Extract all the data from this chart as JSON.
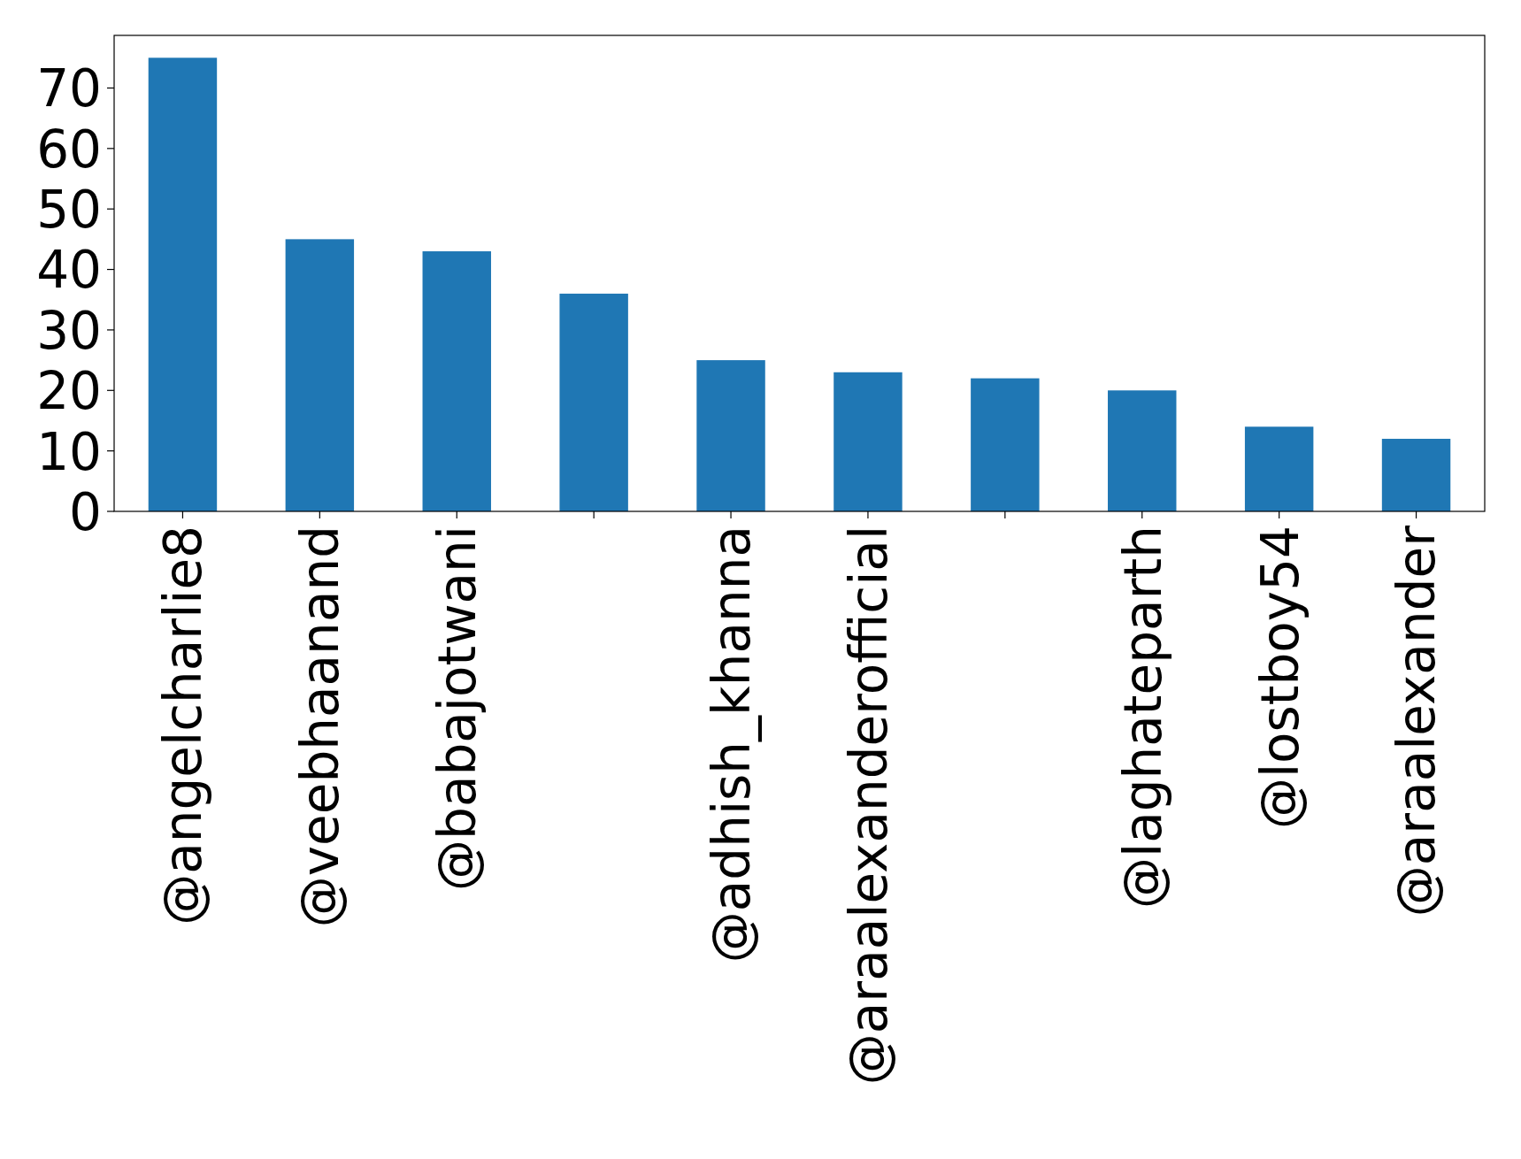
{
  "chart_data": {
    "type": "bar",
    "categories": [
      "@angelcharlie8",
      "@veebhaanand",
      "@babajotwani",
      null,
      "@adhish_khanna",
      "@araalexanderofficial",
      null,
      "@laghateparth",
      "@lostboy54",
      "@araalexander"
    ],
    "values": [
      75,
      45,
      43,
      36,
      25,
      23,
      22,
      20,
      14,
      12
    ],
    "color": "#1f77b4",
    "ylim": [
      0,
      78.7
    ],
    "yticks": [
      0,
      10,
      20,
      30,
      40,
      50,
      60,
      70
    ],
    "grid": false
  }
}
